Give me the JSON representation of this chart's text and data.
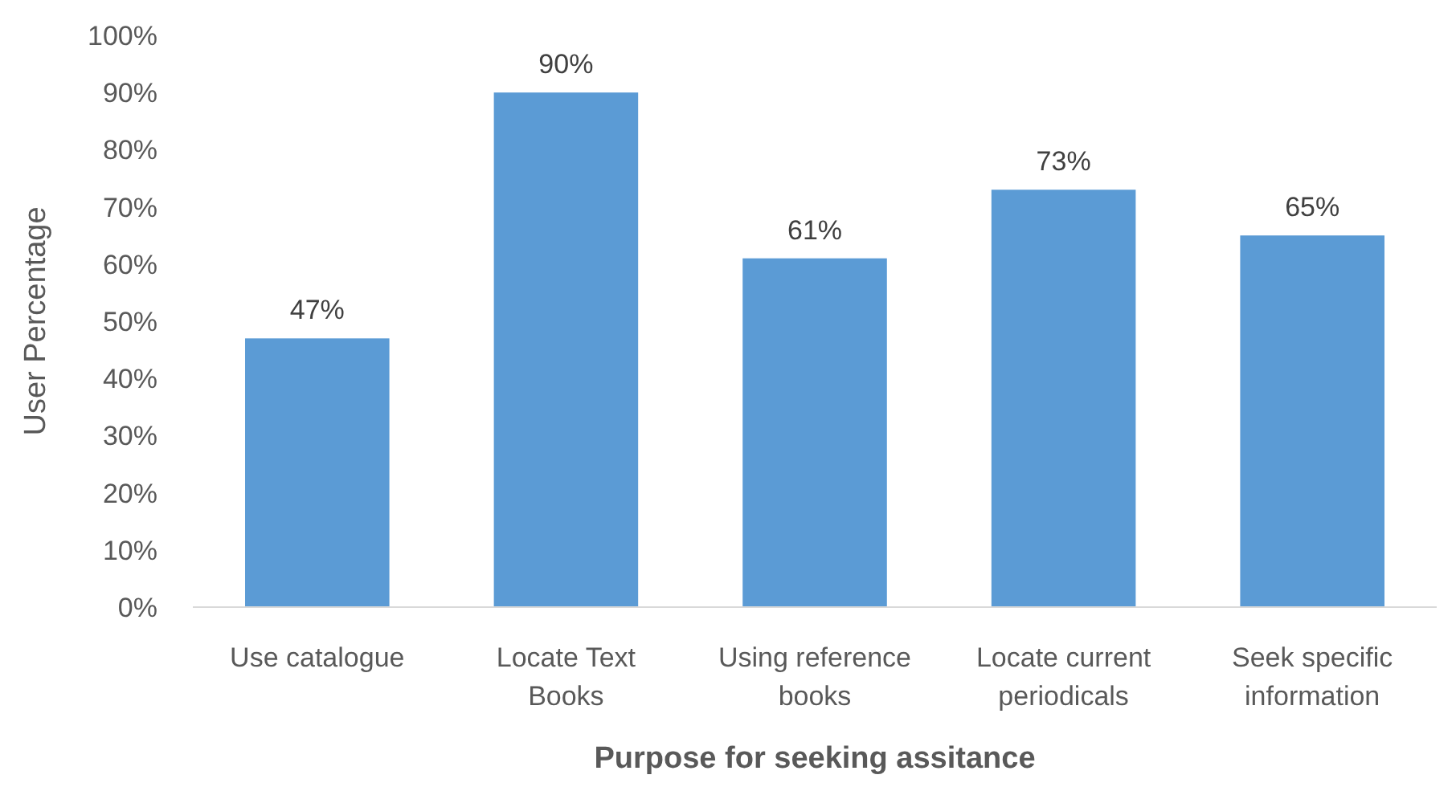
{
  "chart_data": {
    "type": "bar",
    "xlabel": "Purpose for seeking assitance",
    "ylabel": "User Percentage",
    "categories": [
      "Use catalogue",
      "Locate Text Books",
      "Using reference books",
      "Locate current periodicals",
      "Seek specific information"
    ],
    "values": [
      47,
      90,
      61,
      73,
      65
    ],
    "value_labels": [
      "47%",
      "90%",
      "61%",
      "73%",
      "65%"
    ],
    "color": "#5b9bd5",
    "ylim": [
      0,
      100
    ],
    "yticks": [
      {
        "value": 0,
        "label": "0%"
      },
      {
        "value": 10,
        "label": "10%"
      },
      {
        "value": 20,
        "label": "20%"
      },
      {
        "value": 30,
        "label": "30%"
      },
      {
        "value": 40,
        "label": "40%"
      },
      {
        "value": 50,
        "label": "50%"
      },
      {
        "value": 60,
        "label": "60%"
      },
      {
        "value": 70,
        "label": "70%"
      },
      {
        "value": 80,
        "label": "80%"
      },
      {
        "value": 90,
        "label": "90%"
      },
      {
        "value": 100,
        "label": "100%"
      }
    ],
    "grid": false
  }
}
